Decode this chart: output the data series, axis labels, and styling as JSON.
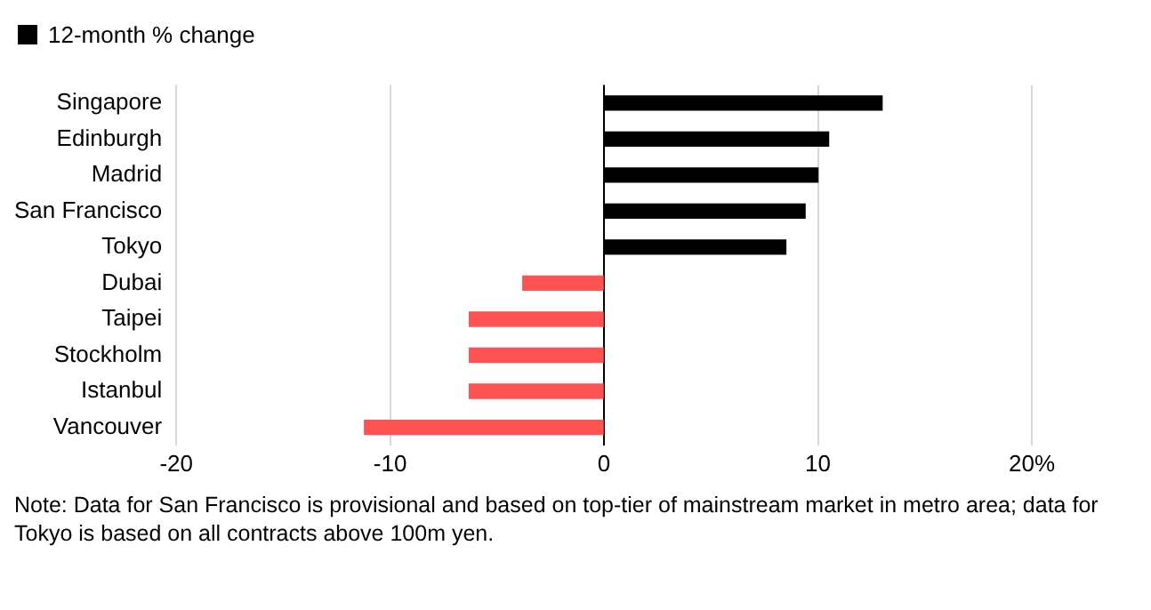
{
  "chart_data": {
    "type": "bar",
    "orientation": "horizontal",
    "categories": [
      "Singapore",
      "Edinburgh",
      "Madrid",
      "San Francisco",
      "Tokyo",
      "Dubai",
      "Taipei",
      "Stockholm",
      "Istanbul",
      "Vancouver"
    ],
    "series": [
      {
        "name": "12-month % change",
        "color": "#000000",
        "colors": [
          "#000000",
          "#000000",
          "#000000",
          "#000000",
          "#000000",
          "#ff5252",
          "#ff5252",
          "#ff5252",
          "#ff5252",
          "#ff5252"
        ],
        "values": [
          13.0,
          10.5,
          10.0,
          9.4,
          8.5,
          -3.8,
          -6.3,
          -6.3,
          -6.3,
          -11.2
        ]
      }
    ],
    "xlim": [
      -20,
      20
    ],
    "xticks": [
      -20,
      -10,
      0,
      10,
      {
        "value": 20,
        "label": "20%"
      }
    ],
    "grid": "x",
    "legend": "top left",
    "annotations": [
      "Note: Data for San Francisco is provisional and based on top-tier of mainstream market in metro area; data for Tokyo is based on all contracts above 100m yen."
    ]
  }
}
